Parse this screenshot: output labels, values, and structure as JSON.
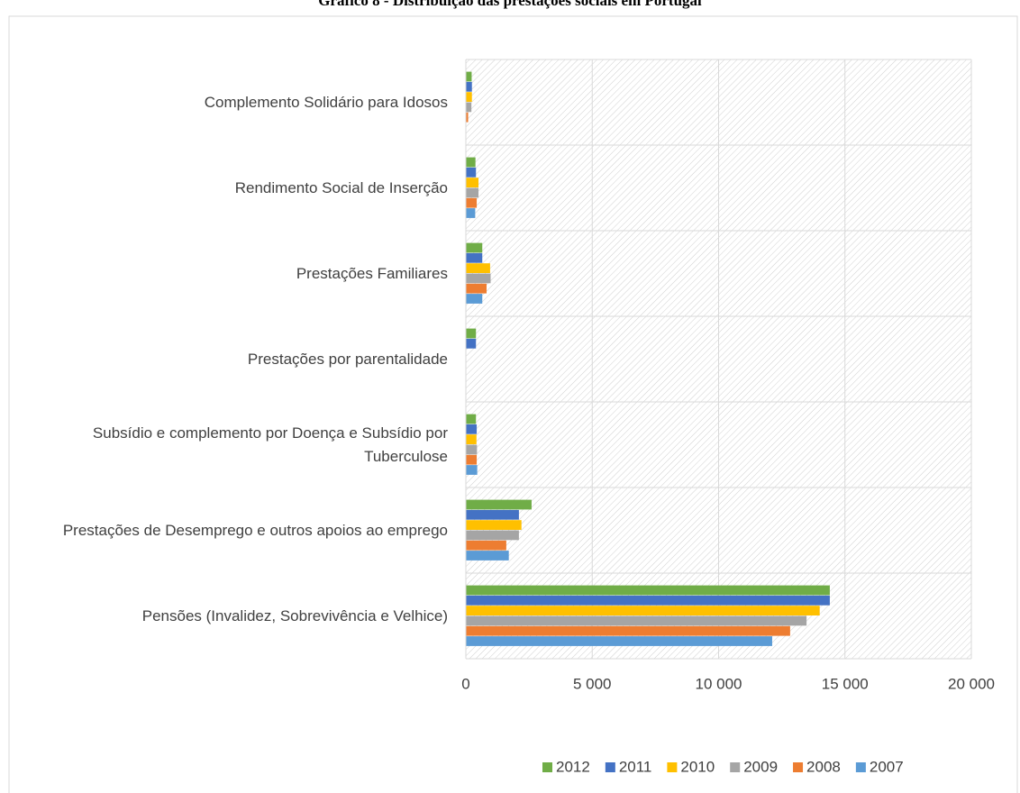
{
  "chart_data": {
    "type": "hbar",
    "title": "Gráfico 8 - Distribuição das prestações sociais em Portugal",
    "categories": [
      "Complemento Solidário para Idosos",
      "Rendimento Social de Inserção",
      "Prestações Familiares",
      "Prestações por parentalidade",
      "Subsídio e complemento por Doença e Subsídio por Tuberculose",
      "Prestações de Desemprego e outros apoios ao emprego",
      "Pensões (Invalidez, Sobrevivência e Velhice)"
    ],
    "series": [
      {
        "name": "2012",
        "color": "#70ad47",
        "values": [
          230,
          380,
          650,
          400,
          400,
          2600,
          14400
        ]
      },
      {
        "name": "2011",
        "color": "#4472c4",
        "values": [
          240,
          400,
          650,
          400,
          430,
          2100,
          14400
        ]
      },
      {
        "name": "2010",
        "color": "#ffc000",
        "values": [
          240,
          500,
          960,
          null,
          420,
          2200,
          14000
        ]
      },
      {
        "name": "2009",
        "color": "#a5a5a5",
        "values": [
          220,
          500,
          980,
          null,
          440,
          2100,
          13480
        ]
      },
      {
        "name": "2008",
        "color": "#ed7d31",
        "values": [
          90,
          430,
          820,
          null,
          430,
          1600,
          12830
        ]
      },
      {
        "name": "2007",
        "color": "#5b9bd5",
        "values": [
          null,
          370,
          650,
          null,
          450,
          1700,
          12120
        ]
      }
    ],
    "xlim": [
      0,
      20000
    ],
    "xticks": [
      0,
      {
        "value": 5000,
        "label": "5 000"
      },
      {
        "value": 10000,
        "label": "10 000"
      },
      {
        "value": 15000,
        "label": "15 000"
      },
      {
        "value": 20000,
        "label": "20 000"
      }
    ],
    "grid": true,
    "legend": "bottom"
  }
}
